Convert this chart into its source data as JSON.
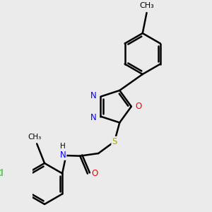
{
  "bg_color": "#ebebeb",
  "bond_color": "#000000",
  "bond_width": 1.8,
  "dbo": 0.05,
  "atom_colors": {
    "N": "#0000ff",
    "O": "#ff0000",
    "S": "#aaaa00",
    "Cl": "#00aa00",
    "C": "#000000"
  },
  "font_size": 8.5,
  "fig_size": [
    3.0,
    3.0
  ],
  "dpi": 100,
  "xlim": [
    -0.3,
    2.8
  ],
  "ylim": [
    -0.2,
    3.8
  ]
}
